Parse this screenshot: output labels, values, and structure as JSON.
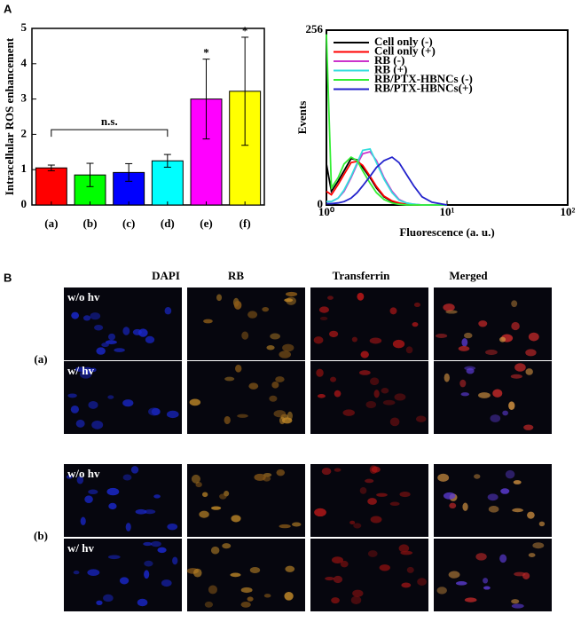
{
  "panel_labels": [
    "A",
    "B"
  ],
  "chart_data": [
    {
      "type": "bar",
      "y_label": "Intracellular ROS enhancement",
      "categories": [
        "(a)",
        "(b)",
        "(c)",
        "(d)",
        "(e)",
        "(f)"
      ],
      "values": [
        1.05,
        0.85,
        0.92,
        1.25,
        3.0,
        3.22
      ],
      "errors": [
        0.08,
        0.33,
        0.25,
        0.18,
        1.13,
        1.53
      ],
      "colors": [
        "#ff0000",
        "#00ff00",
        "#0000ff",
        "#00ffff",
        "#ff00ff",
        "#ffff00"
      ],
      "ylim": [
        0,
        5
      ],
      "yticks": [
        0,
        1,
        2,
        3,
        4,
        5
      ],
      "group_annotation": {
        "text": "n.s.",
        "from": 0,
        "to": 3
      },
      "star_annotations": [
        {
          "text": "*",
          "index": 4
        },
        {
          "text": "*",
          "index": 5
        }
      ]
    },
    {
      "type": "line",
      "x_label": "Fluorescence (a. u.)",
      "y_label": "Events",
      "xscale": "log",
      "x": [
        1,
        1.1,
        1.25,
        1.4,
        1.6,
        1.8,
        2.0,
        2.3,
        2.6,
        3.0,
        3.5,
        4.0,
        4.6,
        5.3,
        6.2,
        7.5,
        10
      ],
      "series": [
        {
          "name": "Cell only (-)",
          "color": "#000000",
          "values": [
            60,
            20,
            35,
            50,
            68,
            66,
            55,
            40,
            25,
            12,
            5,
            2,
            1,
            0,
            0,
            0,
            0
          ]
        },
        {
          "name": "Cell only (+)",
          "color": "#ff0000",
          "values": [
            20,
            15,
            30,
            45,
            62,
            64,
            58,
            42,
            27,
            13,
            6,
            3,
            1,
            0,
            0,
            0,
            0
          ]
        },
        {
          "name": "RB (-)",
          "color": "#cc33cc",
          "values": [
            5,
            5,
            10,
            20,
            40,
            60,
            75,
            78,
            65,
            40,
            20,
            8,
            3,
            1,
            0,
            0,
            0
          ]
        },
        {
          "name": "RB (+)",
          "color": "#33dddd",
          "values": [
            5,
            5,
            10,
            22,
            42,
            62,
            80,
            82,
            62,
            38,
            18,
            7,
            3,
            1,
            0,
            0,
            0
          ]
        },
        {
          "name": "RB/PTX-HBNCs (-)",
          "color": "#33ee33",
          "values": [
            250,
            25,
            40,
            60,
            70,
            65,
            50,
            32,
            18,
            8,
            3,
            1,
            0,
            0,
            0,
            0,
            0
          ]
        },
        {
          "name": "RB/PTX-HBNCs(+)",
          "color": "#2222cc",
          "values": [
            2,
            2,
            3,
            5,
            10,
            18,
            28,
            42,
            55,
            65,
            70,
            62,
            45,
            28,
            12,
            4,
            0
          ]
        }
      ],
      "xlim": [
        1,
        100
      ],
      "xticks": [
        {
          "value": 1,
          "label": "10⁰"
        },
        {
          "value": 10,
          "label": "10¹"
        },
        {
          "value": 100,
          "label": "10²"
        }
      ],
      "ylim": [
        0,
        256
      ],
      "yticks": [
        0,
        256
      ],
      "legend": "upper left"
    }
  ],
  "microscopy": {
    "columns": [
      "DAPI",
      "RB",
      "Transferrin",
      "Merged"
    ],
    "rows": [
      {
        "label": "(a)",
        "conditions": [
          "w/o hv",
          "w/ hv"
        ]
      },
      {
        "label": "(b)",
        "conditions": [
          "w/o hv",
          "w/ hv"
        ]
      }
    ]
  }
}
